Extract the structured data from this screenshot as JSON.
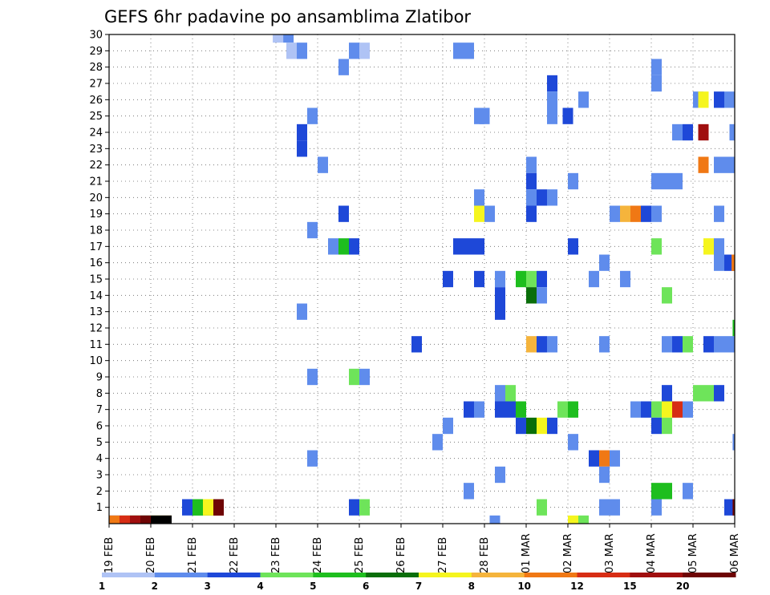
{
  "chart_data": {
    "type": "heatmap",
    "title": "GEFS 6hr padavine po ansamblima Zlatibor",
    "xlabel": "",
    "ylabel": "",
    "x_ticks": [
      "19 FEB",
      "20 FEB",
      "21 FEB",
      "22 FEB",
      "23 FEB",
      "24 FEB",
      "25 FEB",
      "26 FEB",
      "27 FEB",
      "28 FEB",
      "01 MAR",
      "02 MAR",
      "03 MAR",
      "04 MAR",
      "05 MAR",
      "06 MAR"
    ],
    "x_range": [
      0,
      60
    ],
    "x_unit": "6-hour steps from 19 FEB",
    "y_ticks": [
      1,
      2,
      3,
      4,
      5,
      6,
      7,
      8,
      9,
      10,
      11,
      12,
      13,
      14,
      15,
      16,
      17,
      18,
      19,
      20,
      21,
      22,
      23,
      24,
      25,
      26,
      27,
      28,
      29,
      30
    ],
    "y_range": [
      0,
      30
    ],
    "grid": true,
    "legend": {
      "placement": "bottom",
      "labels": [
        "1",
        "2",
        "3",
        "4",
        "5",
        "6",
        "7",
        "8",
        "10",
        "12",
        "15",
        "20"
      ],
      "colors": [
        "#afc3f5",
        "#5f8cec",
        "#1e48d8",
        "#6ee45a",
        "#1ebe1e",
        "#0a6e0a",
        "#f5f51e",
        "#f5b43c",
        "#f07814",
        "#d72d14",
        "#a00f0f",
        "#6e0505"
      ]
    },
    "cells": [
      [
        0,
        2,
        0
      ],
      [
        1,
        3,
        0
      ],
      [
        2,
        4,
        0
      ],
      [
        3,
        5,
        0
      ],
      [
        4,
        6,
        0
      ],
      [
        5,
        7,
        0
      ],
      [
        0,
        8,
        0
      ],
      [
        1,
        9,
        0
      ],
      [
        2,
        10,
        0
      ],
      [
        3,
        11,
        0
      ],
      [
        4,
        12,
        0
      ],
      [
        5,
        13,
        0
      ],
      [
        7,
        2,
        1
      ],
      [
        8,
        0,
        1
      ],
      [
        8,
        1,
        1
      ],
      [
        8,
        2,
        1
      ],
      [
        8,
        3,
        1
      ],
      [
        8,
        4,
        1
      ],
      [
        9,
        5,
        1
      ],
      [
        9,
        6,
        1
      ],
      [
        10,
        7,
        1
      ],
      [
        10,
        8,
        1
      ],
      [
        10,
        9,
        1
      ],
      [
        10,
        10,
        1
      ],
      [
        10,
        11,
        1
      ],
      [
        15.7,
        0,
        30
      ],
      [
        16.7,
        1,
        30
      ],
      [
        17.0,
        0,
        29
      ],
      [
        18.0,
        1,
        29
      ],
      [
        23.0,
        1,
        29
      ],
      [
        24.0,
        0,
        29
      ],
      [
        33.0,
        1,
        29
      ],
      [
        34.0,
        1,
        29
      ],
      [
        22.0,
        1,
        28
      ],
      [
        52.0,
        1,
        28
      ],
      [
        52.0,
        1,
        27
      ],
      [
        42.0,
        2,
        27
      ],
      [
        42.0,
        1,
        26
      ],
      [
        45.0,
        1,
        26
      ],
      [
        56.0,
        1,
        26
      ],
      [
        56.5,
        6,
        26
      ],
      [
        58.0,
        2,
        26
      ],
      [
        59.0,
        1,
        26
      ],
      [
        19.0,
        1,
        25
      ],
      [
        35.0,
        1,
        25
      ],
      [
        35.5,
        1,
        25
      ],
      [
        42.0,
        1,
        25
      ],
      [
        43.5,
        2,
        25
      ],
      [
        18.0,
        2,
        24
      ],
      [
        54.0,
        1,
        24
      ],
      [
        55.0,
        2,
        24
      ],
      [
        56.5,
        10,
        24
      ],
      [
        59.5,
        1,
        24
      ],
      [
        18.0,
        2,
        23
      ],
      [
        20.0,
        1,
        22
      ],
      [
        40.0,
        1,
        22
      ],
      [
        56.5,
        8,
        22
      ],
      [
        58.0,
        1,
        22
      ],
      [
        59.0,
        1,
        22
      ],
      [
        40.0,
        2,
        21
      ],
      [
        44.0,
        1,
        21
      ],
      [
        52.0,
        1,
        21
      ],
      [
        53.0,
        1,
        21
      ],
      [
        54.0,
        1,
        21
      ],
      [
        35.0,
        1,
        20
      ],
      [
        40.0,
        1,
        20
      ],
      [
        41.0,
        2,
        20
      ],
      [
        42.0,
        1,
        20
      ],
      [
        22.0,
        2,
        19
      ],
      [
        35.0,
        6,
        19
      ],
      [
        36.0,
        1,
        19
      ],
      [
        40.0,
        2,
        19
      ],
      [
        48.0,
        1,
        19
      ],
      [
        49.0,
        7,
        19
      ],
      [
        50.0,
        8,
        19
      ],
      [
        51.0,
        2,
        19
      ],
      [
        52.0,
        1,
        19
      ],
      [
        58.0,
        1,
        19
      ],
      [
        19.0,
        1,
        18
      ],
      [
        21.0,
        1,
        17
      ],
      [
        22.0,
        4,
        17
      ],
      [
        23.0,
        2,
        17
      ],
      [
        33.0,
        2,
        17
      ],
      [
        34.0,
        2,
        17
      ],
      [
        35.0,
        2,
        17
      ],
      [
        44.0,
        2,
        17
      ],
      [
        52.0,
        3,
        17
      ],
      [
        57.0,
        6,
        17
      ],
      [
        58.0,
        1,
        17
      ],
      [
        47.0,
        1,
        16
      ],
      [
        58.0,
        1,
        16
      ],
      [
        59.0,
        2,
        16
      ],
      [
        59.7,
        8,
        16
      ],
      [
        32.0,
        2,
        15
      ],
      [
        35.0,
        2,
        15
      ],
      [
        37.0,
        1,
        15
      ],
      [
        39.0,
        4,
        15
      ],
      [
        40.0,
        3,
        15
      ],
      [
        41.0,
        2,
        15
      ],
      [
        46.0,
        1,
        15
      ],
      [
        49.0,
        1,
        15
      ],
      [
        37.0,
        2,
        14
      ],
      [
        40.0,
        5,
        14
      ],
      [
        41.0,
        1,
        14
      ],
      [
        53.0,
        3,
        14
      ],
      [
        18.0,
        1,
        13
      ],
      [
        37.0,
        2,
        13
      ],
      [
        29.0,
        2,
        11
      ],
      [
        40.0,
        7,
        11
      ],
      [
        41.0,
        2,
        11
      ],
      [
        42.0,
        1,
        11
      ],
      [
        47.0,
        1,
        11
      ],
      [
        53.0,
        1,
        11
      ],
      [
        54.0,
        2,
        11
      ],
      [
        55.0,
        3,
        11
      ],
      [
        57.0,
        2,
        11
      ],
      [
        58.0,
        1,
        11
      ],
      [
        59.0,
        1,
        11
      ],
      [
        59.8,
        4,
        12
      ],
      [
        19.0,
        1,
        9
      ],
      [
        23.0,
        3,
        9
      ],
      [
        24.0,
        1,
        9
      ],
      [
        37.0,
        1,
        8
      ],
      [
        38.0,
        3,
        8
      ],
      [
        53.0,
        2,
        8
      ],
      [
        56.0,
        3,
        8
      ],
      [
        57.0,
        3,
        8
      ],
      [
        58.0,
        2,
        8
      ],
      [
        34.0,
        2,
        7
      ],
      [
        35.0,
        1,
        7
      ],
      [
        37.0,
        2,
        7
      ],
      [
        38.0,
        2,
        7
      ],
      [
        39.0,
        4,
        7
      ],
      [
        43.0,
        3,
        7
      ],
      [
        44.0,
        4,
        7
      ],
      [
        50.0,
        1,
        7
      ],
      [
        51.0,
        2,
        7
      ],
      [
        52.0,
        3,
        7
      ],
      [
        53.0,
        6,
        7
      ],
      [
        54.0,
        9,
        7
      ],
      [
        55.0,
        1,
        7
      ],
      [
        32.0,
        1,
        6
      ],
      [
        39.0,
        2,
        6
      ],
      [
        40.0,
        5,
        6
      ],
      [
        41.0,
        6,
        6
      ],
      [
        42.0,
        2,
        6
      ],
      [
        52.0,
        2,
        6
      ],
      [
        53.0,
        3,
        6
      ],
      [
        31.0,
        1,
        5
      ],
      [
        44.0,
        1,
        5
      ],
      [
        59.8,
        1,
        5
      ],
      [
        19.0,
        1,
        4
      ],
      [
        46.0,
        2,
        4
      ],
      [
        47.0,
        8,
        4
      ],
      [
        48.0,
        1,
        4
      ],
      [
        37.0,
        1,
        3
      ],
      [
        47.0,
        1,
        3
      ],
      [
        34.0,
        1,
        2
      ],
      [
        52.0,
        4,
        2
      ],
      [
        53.0,
        4,
        2
      ],
      [
        55.0,
        1,
        2
      ],
      [
        23.0,
        2,
        1
      ],
      [
        24.0,
        3,
        1
      ],
      [
        41.0,
        3,
        1
      ],
      [
        47.0,
        1,
        1
      ],
      [
        48.0,
        1,
        1
      ],
      [
        52.0,
        1,
        1
      ],
      [
        59.0,
        2,
        1
      ],
      [
        59.8,
        11,
        1
      ],
      [
        36.5,
        1,
        0
      ],
      [
        44.0,
        6,
        0
      ],
      [
        45.0,
        3,
        0
      ]
    ]
  }
}
